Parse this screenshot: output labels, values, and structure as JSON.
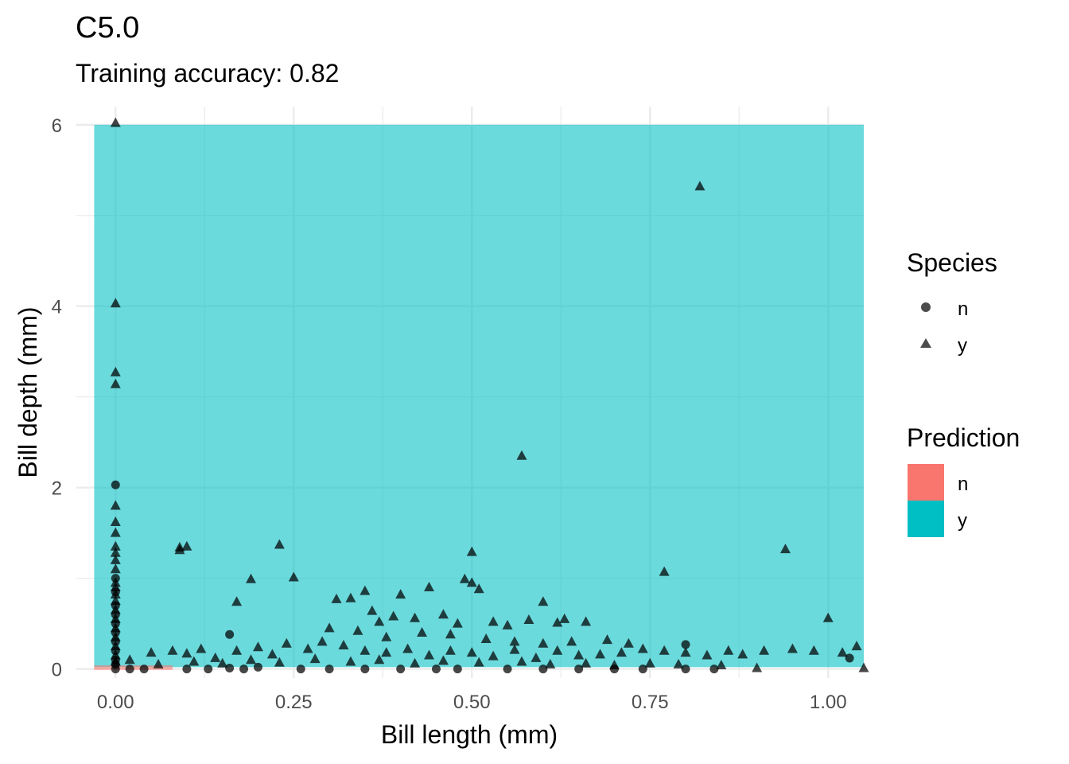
{
  "chart_data": {
    "type": "scatter",
    "title": "C5.0",
    "subtitle": "Training accuracy: 0.82",
    "xlabel": "Bill length (mm)",
    "ylabel": "Bill depth (mm)",
    "xlim": [
      -0.055,
      1.05
    ],
    "ylim": [
      -0.1,
      6.2
    ],
    "x_ticks": [
      0.0,
      0.25,
      0.5,
      0.75,
      1.0
    ],
    "x_tick_labels": [
      "0.00",
      "0.25",
      "0.50",
      "0.75",
      "1.00"
    ],
    "y_ticks": [
      0,
      2,
      4,
      6
    ],
    "y_tick_labels": [
      "0",
      "2",
      "4",
      "6"
    ],
    "grid": true,
    "prediction_regions": [
      {
        "class": "y",
        "x": [
          -0.03,
          1.05
        ],
        "y": [
          0.02,
          6.0
        ]
      },
      {
        "class": "n",
        "x": [
          -0.03,
          0.08
        ],
        "y": [
          -0.01,
          0.04
        ]
      }
    ],
    "series": [
      {
        "name": "n",
        "shape": "circle",
        "points": [
          [
            0,
            2.03
          ],
          [
            0,
            1.0
          ],
          [
            0,
            0.85
          ],
          [
            0,
            0.7
          ],
          [
            0,
            0.6
          ],
          [
            0,
            0.5
          ],
          [
            0,
            0.4
          ],
          [
            0,
            0.3
          ],
          [
            0,
            0.2
          ],
          [
            0,
            0.1
          ],
          [
            0,
            0.05
          ],
          [
            0,
            0.0
          ],
          [
            0.02,
            0.0
          ],
          [
            0.04,
            0.0
          ],
          [
            0.1,
            0.0
          ],
          [
            0.13,
            0.0
          ],
          [
            0.16,
            0.38
          ],
          [
            0.16,
            0.01
          ],
          [
            0.18,
            0.0
          ],
          [
            0.2,
            0.02
          ],
          [
            0.26,
            0.0
          ],
          [
            0.3,
            0.0
          ],
          [
            0.35,
            0.0
          ],
          [
            0.4,
            0.0
          ],
          [
            0.45,
            0.0
          ],
          [
            0.48,
            0.0
          ],
          [
            0.55,
            0.0
          ],
          [
            0.6,
            0.0
          ],
          [
            0.65,
            0.0
          ],
          [
            0.7,
            0.0
          ],
          [
            0.74,
            0.0
          ],
          [
            0.8,
            0.0
          ],
          [
            0.8,
            0.27
          ],
          [
            0.84,
            0.0
          ],
          [
            1.03,
            0.12
          ]
        ]
      },
      {
        "name": "y",
        "shape": "triangle",
        "points": [
          [
            0,
            6.02
          ],
          [
            0,
            4.03
          ],
          [
            0,
            3.27
          ],
          [
            0,
            3.14
          ],
          [
            0,
            1.8
          ],
          [
            0,
            1.62
          ],
          [
            0,
            1.5
          ],
          [
            0,
            1.35
          ],
          [
            0,
            1.28
          ],
          [
            0,
            1.2
          ],
          [
            0,
            1.1
          ],
          [
            0,
            0.95
          ],
          [
            0,
            0.9
          ],
          [
            0,
            0.82
          ],
          [
            0,
            0.75
          ],
          [
            0,
            0.65
          ],
          [
            0,
            0.55
          ],
          [
            0,
            0.45
          ],
          [
            0,
            0.35
          ],
          [
            0,
            0.25
          ],
          [
            0,
            0.15
          ],
          [
            0,
            0.08
          ],
          [
            0.09,
            1.31
          ],
          [
            0.09,
            1.34
          ],
          [
            0.1,
            1.35
          ],
          [
            0.17,
            0.74
          ],
          [
            0.19,
            0.99
          ],
          [
            0.23,
            1.37
          ],
          [
            0.25,
            1.01
          ],
          [
            0.35,
            0.86
          ],
          [
            0.33,
            0.78
          ],
          [
            0.31,
            0.77
          ],
          [
            0.57,
            2.35
          ],
          [
            0.5,
            1.29
          ],
          [
            0.49,
            0.99
          ],
          [
            0.5,
            0.95
          ],
          [
            0.51,
            0.88
          ],
          [
            0.44,
            0.9
          ],
          [
            0.4,
            0.82
          ],
          [
            0.82,
            5.32
          ],
          [
            0.94,
            1.32
          ],
          [
            0.77,
            1.07
          ],
          [
            0.6,
            0.74
          ],
          [
            1.0,
            0.56
          ],
          [
            0.36,
            0.64
          ],
          [
            0.37,
            0.52
          ],
          [
            0.39,
            0.58
          ],
          [
            0.42,
            0.56
          ],
          [
            0.46,
            0.6
          ],
          [
            0.48,
            0.5
          ],
          [
            0.53,
            0.52
          ],
          [
            0.55,
            0.48
          ],
          [
            0.58,
            0.54
          ],
          [
            0.62,
            0.51
          ],
          [
            0.63,
            0.55
          ],
          [
            0.66,
            0.52
          ],
          [
            0.3,
            0.45
          ],
          [
            0.34,
            0.42
          ],
          [
            0.38,
            0.35
          ],
          [
            0.43,
            0.4
          ],
          [
            0.47,
            0.38
          ],
          [
            0.52,
            0.33
          ],
          [
            0.56,
            0.3
          ],
          [
            0.6,
            0.28
          ],
          [
            0.64,
            0.3
          ],
          [
            0.69,
            0.32
          ],
          [
            0.72,
            0.28
          ],
          [
            0.02,
            0.1
          ],
          [
            0.05,
            0.18
          ],
          [
            0.08,
            0.2
          ],
          [
            0.1,
            0.17
          ],
          [
            0.12,
            0.22
          ],
          [
            0.14,
            0.12
          ],
          [
            0.17,
            0.2
          ],
          [
            0.2,
            0.24
          ],
          [
            0.22,
            0.16
          ],
          [
            0.24,
            0.28
          ],
          [
            0.27,
            0.22
          ],
          [
            0.29,
            0.3
          ],
          [
            0.32,
            0.26
          ],
          [
            0.35,
            0.2
          ],
          [
            0.38,
            0.18
          ],
          [
            0.41,
            0.22
          ],
          [
            0.44,
            0.15
          ],
          [
            0.47,
            0.2
          ],
          [
            0.5,
            0.18
          ],
          [
            0.53,
            0.14
          ],
          [
            0.56,
            0.21
          ],
          [
            0.59,
            0.12
          ],
          [
            0.62,
            0.2
          ],
          [
            0.65,
            0.15
          ],
          [
            0.68,
            0.16
          ],
          [
            0.71,
            0.18
          ],
          [
            0.74,
            0.22
          ],
          [
            0.77,
            0.2
          ],
          [
            0.8,
            0.18
          ],
          [
            0.83,
            0.15
          ],
          [
            0.86,
            0.2
          ],
          [
            0.88,
            0.16
          ],
          [
            0.91,
            0.2
          ],
          [
            0.95,
            0.22
          ],
          [
            0.98,
            0.2
          ],
          [
            1.02,
            0.18
          ],
          [
            1.04,
            0.25
          ],
          [
            0.06,
            0.05
          ],
          [
            0.11,
            0.08
          ],
          [
            0.15,
            0.06
          ],
          [
            0.19,
            0.1
          ],
          [
            0.23,
            0.07
          ],
          [
            0.28,
            0.11
          ],
          [
            0.33,
            0.08
          ],
          [
            0.37,
            0.1
          ],
          [
            0.42,
            0.06
          ],
          [
            0.46,
            0.09
          ],
          [
            0.51,
            0.07
          ],
          [
            0.57,
            0.08
          ],
          [
            0.61,
            0.05
          ],
          [
            0.66,
            0.06
          ],
          [
            0.7,
            0.04
          ],
          [
            0.75,
            0.06
          ],
          [
            0.79,
            0.05
          ],
          [
            0.85,
            0.04
          ],
          [
            0.9,
            0.01
          ],
          [
            1.05,
            0.01
          ]
        ]
      }
    ],
    "legends": [
      {
        "title": "Species",
        "entries": [
          {
            "label": "n",
            "shape": "circle"
          },
          {
            "label": "y",
            "shape": "triangle"
          }
        ]
      },
      {
        "title": "Prediction",
        "entries": [
          {
            "label": "n",
            "color": "#F8766D"
          },
          {
            "label": "y",
            "color": "#00BFC4"
          }
        ]
      }
    ],
    "legend_position": "right",
    "colors": {
      "region_y": "#00BFC4",
      "region_n": "#F8766D",
      "point": "#000000",
      "grid": "#EBEBEB"
    }
  }
}
